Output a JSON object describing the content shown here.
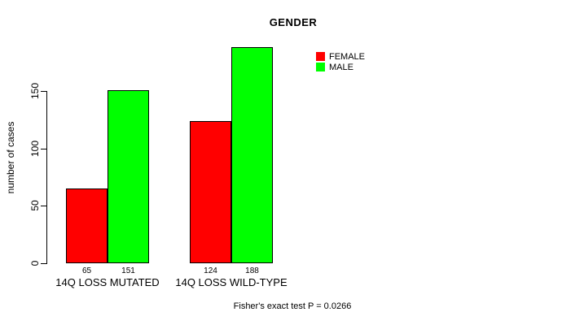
{
  "chart_data": {
    "type": "bar",
    "title": "GENDER",
    "categories": [
      "14Q LOSS MUTATED",
      "14Q LOSS WILD-TYPE"
    ],
    "series": [
      {
        "name": "FEMALE",
        "color": "#FF0000",
        "values": [
          65,
          124
        ]
      },
      {
        "name": "MALE",
        "color": "#00FF00",
        "values": [
          151,
          188
        ]
      }
    ],
    "xlabel": "",
    "ylabel": "number of cases",
    "ylim": [
      0,
      150
    ],
    "yticks": [
      0,
      50,
      100,
      150
    ],
    "grid": false,
    "bar_value_labels_shown": true,
    "legend_position": "top-right-inside",
    "annotation": "Fisher's exact test P = 0.0266"
  }
}
